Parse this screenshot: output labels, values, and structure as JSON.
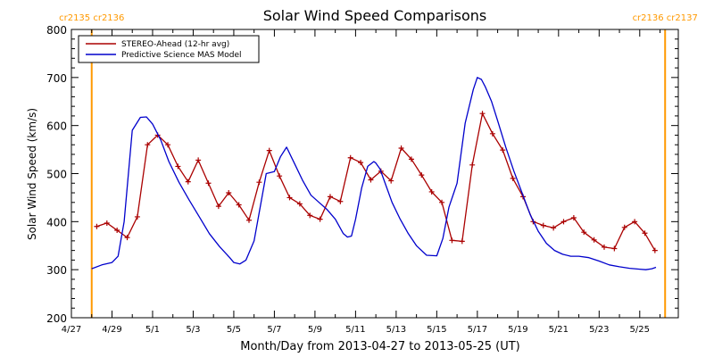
{
  "chart_data": {
    "type": "line",
    "title": "Solar Wind Speed Comparisons",
    "xlabel": "Month/Day from 2013-04-27 to 2013-05-25 (UT)",
    "ylabel": "Solar Wind Speed (km/s)",
    "xlim": [
      0,
      29.9
    ],
    "ylim": [
      200,
      800
    ],
    "y_ticks": [
      200,
      300,
      400,
      500,
      600,
      700,
      800
    ],
    "x_ticks": [
      {
        "x": 0,
        "label": "4/27"
      },
      {
        "x": 2,
        "label": "4/29"
      },
      {
        "x": 4,
        "label": "5/1"
      },
      {
        "x": 6,
        "label": "5/3"
      },
      {
        "x": 8,
        "label": "5/5"
      },
      {
        "x": 10,
        "label": "5/7"
      },
      {
        "x": 12,
        "label": "5/9"
      },
      {
        "x": 14,
        "label": "5/11"
      },
      {
        "x": 16,
        "label": "5/13"
      },
      {
        "x": 18,
        "label": "5/15"
      },
      {
        "x": 20,
        "label": "5/17"
      },
      {
        "x": 22,
        "label": "5/19"
      },
      {
        "x": 24,
        "label": "5/21"
      },
      {
        "x": 26,
        "label": "5/23"
      },
      {
        "x": 28,
        "label": "5/25"
      }
    ],
    "grid": false,
    "legend_position": "top-left",
    "rotation_markers": [
      {
        "x": 1.0,
        "label": "cr2135 cr2136"
      },
      {
        "x": 29.25,
        "label": "cr2136 cr2137"
      }
    ],
    "marker_color": "#ff9900",
    "series": [
      {
        "name": "STEREO-Ahead (12-hr avg)",
        "color": "#aa0000",
        "marker": "plus",
        "x": [
          1.25,
          1.75,
          2.25,
          2.75,
          3.25,
          3.75,
          4.25,
          4.75,
          5.25,
          5.75,
          6.25,
          6.75,
          7.25,
          7.75,
          8.25,
          8.75,
          9.25,
          9.75,
          10.25,
          10.75,
          11.25,
          11.75,
          12.25,
          12.75,
          13.25,
          13.75,
          14.25,
          14.75,
          15.25,
          15.75,
          16.25,
          16.75,
          17.25,
          17.75,
          18.25,
          18.75,
          19.25,
          19.75,
          20.25,
          20.75,
          21.25,
          21.75,
          22.25,
          22.75,
          23.25,
          23.75,
          24.25,
          24.75,
          25.25,
          25.75,
          26.25,
          26.75,
          27.25,
          27.75,
          28.25,
          28.75
        ],
        "y": [
          390,
          397,
          382,
          367,
          410,
          560,
          580,
          560,
          515,
          483,
          528,
          480,
          432,
          460,
          435,
          403,
          482,
          548,
          495,
          450,
          437,
          413,
          405,
          452,
          442,
          533,
          523,
          487,
          505,
          485,
          553,
          530,
          497,
          462,
          440,
          361,
          359,
          518,
          625,
          583,
          549,
          490,
          452,
          400,
          392,
          387,
          400,
          408,
          378,
          362,
          347,
          344,
          388,
          400,
          376,
          340
        ]
      },
      {
        "name": "Predictive Science MAS Model",
        "color": "#0000cc",
        "x": [
          1.0,
          1.5,
          2.0,
          2.3,
          2.6,
          3.0,
          3.4,
          3.7,
          4.0,
          4.4,
          4.8,
          5.3,
          5.8,
          6.3,
          6.8,
          7.3,
          7.8,
          8.0,
          8.3,
          8.6,
          9.0,
          9.3,
          9.6,
          10.0,
          10.3,
          10.6,
          11.0,
          11.4,
          11.8,
          12.2,
          12.6,
          13.0,
          13.4,
          13.6,
          13.8,
          14.0,
          14.3,
          14.6,
          14.9,
          15.0,
          15.2,
          15.5,
          15.8,
          16.2,
          16.6,
          17.0,
          17.5,
          18.0,
          18.3,
          18.6,
          19.0,
          19.4,
          19.8,
          20.0,
          20.2,
          20.4,
          20.7,
          21.0,
          21.4,
          21.8,
          22.2,
          22.6,
          23.0,
          23.4,
          23.8,
          24.2,
          24.6,
          25.0,
          25.5,
          26.0,
          26.5,
          27.0,
          27.5,
          28.0,
          28.3,
          28.6,
          28.8
        ],
        "y": [
          302,
          310,
          315,
          328,
          400,
          590,
          617,
          618,
          603,
          570,
          525,
          482,
          445,
          410,
          375,
          348,
          325,
          315,
          312,
          320,
          360,
          430,
          500,
          504,
          535,
          555,
          520,
          485,
          455,
          440,
          425,
          405,
          375,
          368,
          370,
          405,
          470,
          515,
          525,
          522,
          510,
          475,
          440,
          405,
          375,
          350,
          330,
          329,
          365,
          430,
          480,
          605,
          675,
          700,
          696,
          680,
          650,
          610,
          555,
          505,
          460,
          415,
          380,
          355,
          340,
          332,
          328,
          328,
          325,
          318,
          310,
          306,
          303,
          301,
          300,
          302,
          305
        ]
      }
    ]
  }
}
